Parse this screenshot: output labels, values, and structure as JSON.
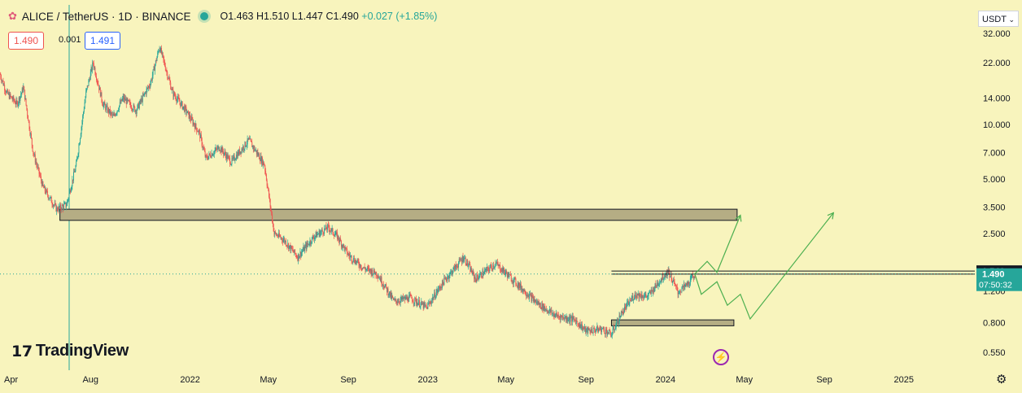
{
  "header": {
    "symbol": "ALICE / TetherUS · 1D · BINANCE",
    "open": "O1.463",
    "high": "H1.510",
    "low": "L1.447",
    "close": "C1.490",
    "change": "+0.027 (+1.85%)"
  },
  "trade": {
    "sell": "1.490",
    "spread": "0.001",
    "buy": "1.491"
  },
  "currency": "USDT",
  "brand": "TradingView",
  "colors": {
    "background": "#f8f4bd",
    "up": "#26a69a",
    "down": "#ef5350",
    "zone_fill": "#b5ad84",
    "projection": "#4caf50",
    "price_badge": "#26a69a"
  },
  "price_labels": {
    "upper": "1.546",
    "current": "1.490",
    "countdown": "07:50:32",
    "lower": "1.487"
  },
  "chart_data": {
    "type": "candlestick",
    "y_scale": "log",
    "y_ticks": [
      "32.000",
      "22.000",
      "14.000",
      "10.000",
      "7.000",
      "5.000",
      "3.500",
      "2.500",
      "1.500",
      "1.200",
      "0.800",
      "0.550"
    ],
    "y_tick_values": [
      32,
      22,
      14,
      10,
      7,
      5,
      3.5,
      2.5,
      1.5,
      1.2,
      0.8,
      0.55
    ],
    "x_ticks": [
      "Apr",
      "Aug",
      "2022",
      "May",
      "Sep",
      "2023",
      "May",
      "Sep",
      "2024",
      "May",
      "Sep",
      "2025"
    ],
    "x_tick_dates": [
      "2021-04-01",
      "2021-08-01",
      "2022-01-01",
      "2022-05-01",
      "2022-09-01",
      "2023-01-01",
      "2023-05-01",
      "2023-09-01",
      "2024-01-01",
      "2024-05-01",
      "2024-09-01",
      "2025-01-01"
    ],
    "x_range": [
      "2021-03-15",
      "2025-04-20"
    ],
    "y_range": [
      0.47,
      45
    ],
    "current_price": 1.49,
    "price_path": [
      [
        "2021-03-15",
        19
      ],
      [
        "2021-03-25",
        15
      ],
      [
        "2021-04-10",
        13
      ],
      [
        "2021-04-20",
        16
      ],
      [
        "2021-05-05",
        7
      ],
      [
        "2021-05-20",
        4.5
      ],
      [
        "2021-06-10",
        3.4
      ],
      [
        "2021-06-25",
        3.6
      ],
      [
        "2021-07-10",
        6
      ],
      [
        "2021-07-25",
        15
      ],
      [
        "2021-08-05",
        22
      ],
      [
        "2021-08-20",
        13
      ],
      [
        "2021-09-05",
        11
      ],
      [
        "2021-09-20",
        14
      ],
      [
        "2021-10-10",
        12
      ],
      [
        "2021-11-01",
        17
      ],
      [
        "2021-11-15",
        27
      ],
      [
        "2021-12-05",
        15
      ],
      [
        "2021-12-25",
        12
      ],
      [
        "2022-01-15",
        9
      ],
      [
        "2022-01-25",
        6.5
      ],
      [
        "2022-02-15",
        7.5
      ],
      [
        "2022-03-05",
        6.2
      ],
      [
        "2022-04-01",
        8.2
      ],
      [
        "2022-04-25",
        6
      ],
      [
        "2022-05-10",
        2.5
      ],
      [
        "2022-05-25",
        2.3
      ],
      [
        "2022-06-15",
        1.85
      ],
      [
        "2022-07-10",
        2.4
      ],
      [
        "2022-08-01",
        2.7
      ],
      [
        "2022-08-15",
        2.4
      ],
      [
        "2022-09-01",
        1.9
      ],
      [
        "2022-09-25",
        1.6
      ],
      [
        "2022-10-15",
        1.5
      ],
      [
        "2022-11-10",
        1.05
      ],
      [
        "2022-12-05",
        1.1
      ],
      [
        "2022-12-30",
        0.97
      ],
      [
        "2023-01-25",
        1.35
      ],
      [
        "2023-02-25",
        1.85
      ],
      [
        "2023-03-15",
        1.4
      ],
      [
        "2023-04-15",
        1.7
      ],
      [
        "2023-05-15",
        1.35
      ],
      [
        "2023-06-15",
        1.05
      ],
      [
        "2023-07-15",
        0.88
      ],
      [
        "2023-08-15",
        0.83
      ],
      [
        "2023-09-01",
        0.72
      ],
      [
        "2023-09-25",
        0.74
      ],
      [
        "2023-10-10",
        0.69
      ],
      [
        "2023-10-25",
        0.9
      ],
      [
        "2023-11-15",
        1.15
      ],
      [
        "2023-12-05",
        1.12
      ],
      [
        "2023-12-25",
        1.4
      ],
      [
        "2024-01-05",
        1.55
      ],
      [
        "2024-01-20",
        1.18
      ],
      [
        "2024-02-05",
        1.32
      ],
      [
        "2024-02-15",
        1.49
      ]
    ],
    "zones": [
      {
        "from": "2021-06-15",
        "to": "2024-04-20",
        "low": 2.95,
        "high": 3.4
      },
      {
        "from": "2023-10-10",
        "to": "2024-04-15",
        "low": 0.77,
        "high": 0.83
      }
    ],
    "h_lines": [
      1.546,
      1.487
    ],
    "projections": [
      [
        [
          "2024-02-15",
          1.49
        ],
        [
          "2024-03-05",
          1.75
        ],
        [
          "2024-03-20",
          1.52
        ],
        [
          "2024-04-25",
          3.15
        ]
      ],
      [
        [
          "2024-02-15",
          1.49
        ],
        [
          "2024-02-25",
          1.15
        ],
        [
          "2024-03-20",
          1.35
        ],
        [
          "2024-04-05",
          1.0
        ],
        [
          "2024-04-25",
          1.15
        ],
        [
          "2024-05-10",
          0.84
        ],
        [
          "2024-09-15",
          3.25
        ]
      ]
    ]
  }
}
